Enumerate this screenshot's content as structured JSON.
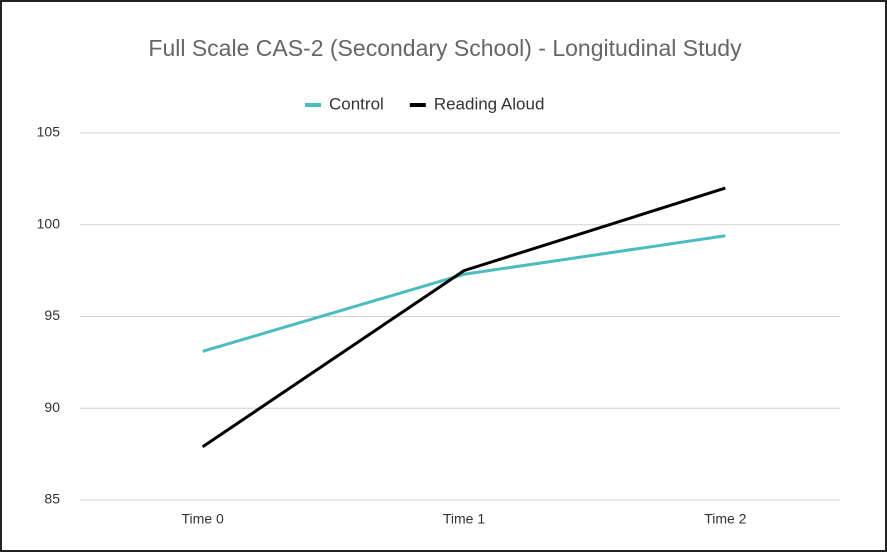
{
  "chart_data": {
    "type": "line",
    "title": "Full Scale CAS-2 (Secondary School) - Longitudinal Study",
    "categories": [
      "Time 0",
      "Time 1",
      "Time 2"
    ],
    "series": [
      {
        "name": "Control",
        "color": "#4bbcbf",
        "values": [
          93.1,
          97.3,
          99.4
        ]
      },
      {
        "name": "Reading Aloud",
        "color": "#000000",
        "values": [
          87.9,
          97.5,
          102.0
        ]
      }
    ],
    "ylim": [
      85,
      105
    ],
    "yticks": [
      85,
      90,
      95,
      100,
      105
    ],
    "grid": true,
    "legend": "top"
  }
}
